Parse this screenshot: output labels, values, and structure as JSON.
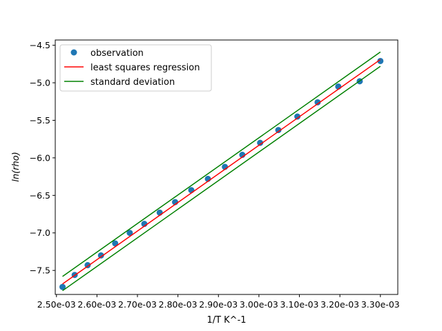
{
  "chart_data": {
    "type": "scatter",
    "xlabel": "1/T  K^-1",
    "ylabel": "ln(rho)",
    "xlim": [
      0.002497,
      0.003343
    ],
    "ylim": [
      -7.82,
      -4.43
    ],
    "x_ticks": [
      0.0025,
      0.0026,
      0.0027,
      0.0028,
      0.0029,
      0.003,
      0.0031,
      0.0032,
      0.0033
    ],
    "x_tick_labels": [
      "2.50e-03",
      "2.60e-03",
      "2.70e-03",
      "2.80e-03",
      "2.90e-03",
      "3.00e-03",
      "3.10e-03",
      "3.20e-03",
      "3.30e-03"
    ],
    "y_ticks": [
      -7.5,
      -7.0,
      -6.5,
      -6.0,
      -5.5,
      -5.0,
      -4.5
    ],
    "y_tick_labels": [
      "−7.5",
      "−7.0",
      "−6.5",
      "−6.0",
      "−5.5",
      "−5.0",
      "−4.5"
    ],
    "grid": false,
    "legend": {
      "placement": "upper-left",
      "entries": [
        "observation",
        "least squares regression",
        "standard deviation"
      ]
    },
    "colors": {
      "observation": "#1f77b4",
      "regression": "#ff0000",
      "deviation": "#008000"
    },
    "series": [
      {
        "name": "observation",
        "kind": "scatter",
        "x": [
          0.002515,
          0.002545,
          0.002577,
          0.00261,
          0.002645,
          0.002681,
          0.002717,
          0.002755,
          0.002793,
          0.002833,
          0.002874,
          0.002916,
          0.002959,
          0.003003,
          0.003048,
          0.003095,
          0.003145,
          0.003196,
          0.003249,
          0.0033
        ],
        "y": [
          -7.72,
          -7.56,
          -7.43,
          -7.3,
          -7.14,
          -7.0,
          -6.88,
          -6.73,
          -6.59,
          -6.43,
          -6.28,
          -6.12,
          -5.96,
          -5.8,
          -5.63,
          -5.45,
          -5.26,
          -5.05,
          -4.98,
          -4.71
        ]
      },
      {
        "name": "least squares regression",
        "kind": "line",
        "x": [
          0.002515,
          0.0033
        ],
        "y": [
          -7.68,
          -4.69
        ]
      },
      {
        "name": "standard deviation",
        "kind": "line",
        "x": [
          0.002515,
          0.0033
        ],
        "y": [
          -7.58,
          -4.59
        ]
      },
      {
        "name": "standard deviation",
        "kind": "line",
        "x": [
          0.002515,
          0.0033
        ],
        "y": [
          -7.77,
          -4.78
        ]
      }
    ]
  }
}
